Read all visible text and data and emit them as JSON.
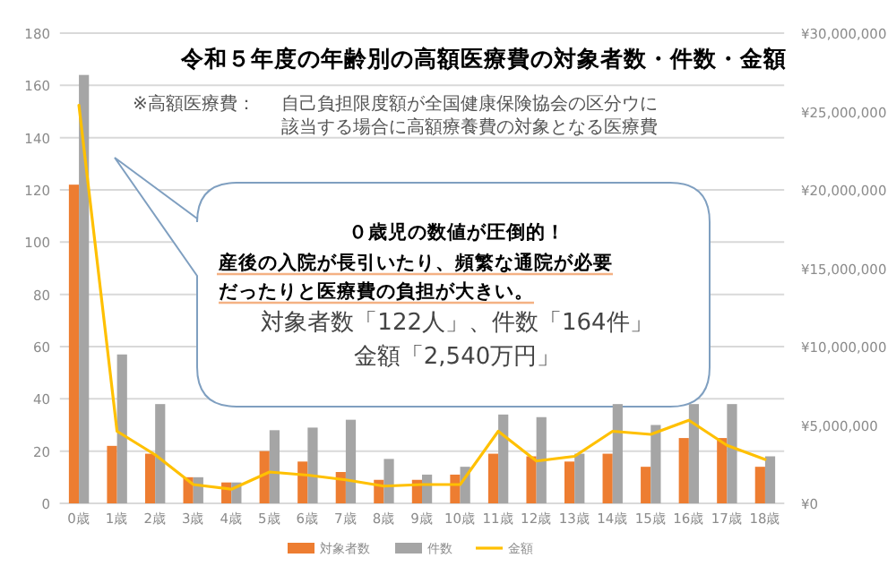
{
  "chart_data": {
    "type": "bar",
    "title": "令和５年度の年齢別の高額医療費の対象者数・件数・金額",
    "categories": [
      "0歳",
      "1歳",
      "2歳",
      "3歳",
      "4歳",
      "5歳",
      "6歳",
      "7歳",
      "8歳",
      "9歳",
      "10歳",
      "11歳",
      "12歳",
      "13歳",
      "14歳",
      "15歳",
      "16歳",
      "17歳",
      "18歳"
    ],
    "series": [
      {
        "name": "対象者数",
        "color": "#ed7d31",
        "values": [
          122,
          22,
          19,
          10,
          8,
          20,
          16,
          12,
          9,
          9,
          11,
          19,
          18,
          16,
          19,
          14,
          25,
          25,
          14
        ]
      },
      {
        "name": "件数",
        "color": "#a5a5a5",
        "values": [
          164,
          57,
          38,
          10,
          8,
          28,
          29,
          32,
          17,
          11,
          14,
          34,
          33,
          19,
          38,
          30,
          38,
          38,
          18
        ]
      },
      {
        "name": "金額",
        "color": "#ffc000",
        "type": "line",
        "axis": "y2",
        "values": [
          25400000,
          4600000,
          3100000,
          1200000,
          900000,
          2000000,
          1800000,
          1500000,
          1100000,
          1200000,
          1200000,
          4600000,
          2700000,
          3000000,
          4600000,
          4400000,
          5300000,
          3700000,
          2800000
        ]
      }
    ],
    "ylim": [
      0,
      180
    ],
    "yticks": [
      0,
      20,
      40,
      60,
      80,
      100,
      120,
      140,
      160,
      180
    ],
    "y2lim": [
      0,
      30000000
    ],
    "y2ticks": [
      {
        "value": 0,
        "label": "¥0"
      },
      {
        "value": 5000000,
        "label": "¥5,000,000"
      },
      {
        "value": 10000000,
        "label": "¥10,000,000"
      },
      {
        "value": 15000000,
        "label": "¥15,000,000"
      },
      {
        "value": 20000000,
        "label": "¥20,000,000"
      },
      {
        "value": 25000000,
        "label": "¥25,000,000"
      },
      {
        "value": 30000000,
        "label": "¥30,000,000"
      }
    ],
    "grid": "y",
    "legend": "bottom",
    "annotations": [
      "※高額医療費：",
      "自己負担限度額が全国健康保険協会の区分ウに該当する場合に高額療養費の対象となる医療費",
      "０歳児の数値が圧倒的！",
      "産後の入院が長引いたり、頻繁な通院が必要",
      "だったりと医療費の負担が大きい。",
      "対象者数「122人」、件数「164件」",
      "金額「2,540万円」"
    ]
  }
}
